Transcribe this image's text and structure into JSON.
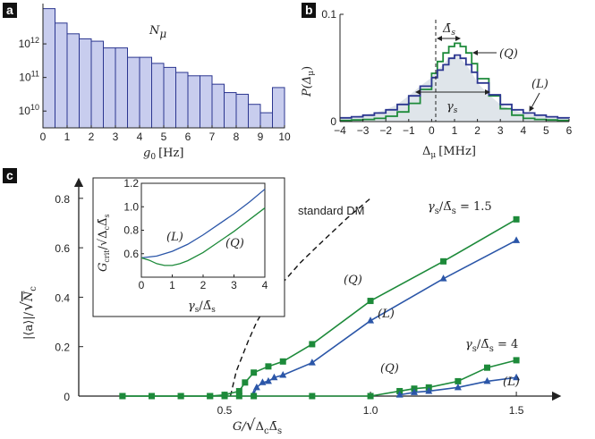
{
  "panel_letters": {
    "a": "a",
    "b": "b",
    "c": "c"
  },
  "chart_data": [
    {
      "id": "a",
      "type": "bar",
      "title": "N_μ",
      "title_main": "N",
      "title_sub": "μ",
      "xlabel_var": "g",
      "xlabel_sub": "0",
      "xlabel_unit": "[Hz]",
      "log_y": true,
      "xlim": [
        0,
        10
      ],
      "ylim_exp": [
        9.5,
        13.2
      ],
      "x_ticks": [
        "0",
        "1",
        "2",
        "3",
        "4",
        "5",
        "6",
        "7",
        "8",
        "9",
        "10"
      ],
      "y_ticks": [
        {
          "base": "10",
          "exp": "12"
        },
        {
          "base": "10",
          "exp": "11"
        },
        {
          "base": "10",
          "exp": "10"
        }
      ],
      "bar_width": 0.5,
      "bar_centers": [
        0.25,
        0.75,
        1.25,
        1.75,
        2.25,
        2.75,
        3.25,
        3.75,
        4.25,
        4.75,
        5.25,
        5.75,
        6.25,
        6.75,
        7.25,
        7.75,
        8.25,
        8.75,
        9.25,
        9.75
      ],
      "values_exp": [
        13.05,
        12.62,
        12.3,
        12.15,
        12.08,
        11.88,
        11.88,
        11.6,
        11.6,
        11.42,
        11.3,
        11.15,
        11.05,
        11.05,
        10.8,
        10.55,
        10.5,
        10.2,
        9.95,
        10.7
      ],
      "colors": {
        "fill": "#c8cdee",
        "stroke": "#2b3690"
      }
    },
    {
      "id": "b",
      "type": "area",
      "ylabel": "P(Δ_μ)",
      "ylabel_main": "P(Δ",
      "ylabel_sub": "μ",
      "ylabel_end": ")",
      "xlabel_main": "Δ",
      "xlabel_sub": "μ",
      "xlabel_unit": "[MHz]",
      "xlim": [
        -4,
        6
      ],
      "ylim": [
        0,
        0.1
      ],
      "x_ticks": [
        "−4",
        "−3",
        "−2",
        "−1",
        "0",
        "1",
        "2",
        "3",
        "4",
        "5",
        "6"
      ],
      "y_ticks": [
        "0",
        "0.1"
      ],
      "annotations": {
        "delta_bar": "Δ̄",
        "delta_sub": "s",
        "gamma": "γ",
        "gamma_sub": "s",
        "Q": "(Q)",
        "L": "(L)"
      },
      "series": [
        {
          "name": "(L)",
          "color": "#2b3690",
          "x": [
            -4,
            -3.5,
            -3,
            -2.5,
            -2,
            -1.5,
            -1,
            -0.5,
            0,
            0.25,
            0.5,
            0.75,
            1,
            1.25,
            1.5,
            1.75,
            2,
            2.5,
            3,
            3.5,
            4,
            4.5,
            5,
            5.5,
            6
          ],
          "y": [
            0.0035,
            0.0045,
            0.006,
            0.008,
            0.011,
            0.016,
            0.024,
            0.033,
            0.041,
            0.048,
            0.053,
            0.059,
            0.062,
            0.059,
            0.053,
            0.046,
            0.036,
            0.025,
            0.016,
            0.011,
            0.008,
            0.006,
            0.0045,
            0.0035,
            0.003
          ]
        },
        {
          "name": "(Q)",
          "color": "#1d8a3a",
          "x": [
            -4,
            -3.5,
            -3,
            -2.5,
            -2,
            -1.5,
            -1,
            -0.5,
            0,
            0.25,
            0.5,
            0.75,
            1,
            1.25,
            1.5,
            1.75,
            2,
            2.5,
            3,
            3.5,
            4,
            4.5,
            5,
            5.5,
            6
          ],
          "y": [
            0.001,
            0.0015,
            0.002,
            0.003,
            0.005,
            0.009,
            0.017,
            0.03,
            0.045,
            0.056,
            0.064,
            0.07,
            0.073,
            0.07,
            0.064,
            0.054,
            0.04,
            0.024,
            0.012,
            0.006,
            0.003,
            0.002,
            0.0015,
            0.001,
            0.001
          ]
        }
      ]
    },
    {
      "id": "c",
      "type": "line",
      "xlabel": "G/√(Δ_c Δ̄_s)",
      "xlabel_pre": "G/",
      "xlabel_rad": "Δ",
      "xlabel_rad_sub": "c",
      "xlabel_rad2": "Δ̄",
      "xlabel_rad2_sub": "s",
      "ylabel_pre": "|⟨a⟩|/",
      "ylabel_rad": "N",
      "ylabel_rad_sub": "c",
      "xlim": [
        0,
        1.65
      ],
      "ylim": [
        0,
        0.85
      ],
      "x_ticks": [
        {
          "v": 0.5,
          "t": "0.5"
        },
        {
          "v": 1.0,
          "t": "1.0"
        },
        {
          "v": 1.5,
          "t": "1.5"
        }
      ],
      "y_ticks": [
        {
          "v": 0,
          "t": "0"
        },
        {
          "v": 0.2,
          "t": "0.2"
        },
        {
          "v": 0.4,
          "t": "0.4"
        },
        {
          "v": 0.6,
          "t": "0.6"
        },
        {
          "v": 0.8,
          "t": "0.8"
        }
      ],
      "annotations": {
        "standard_dm": "standard DM",
        "ratio_top_pre": "γ",
        "ratio_top_sub": "s",
        "ratio_top_mid": "/Δ̄",
        "ratio_top_sub2": "s",
        "ratio_top_val": " = 1.5",
        "ratio_bot_val": " = 4",
        "Q": "(Q)",
        "L": "(L)"
      },
      "dm_curve": {
        "x": [
          0.52,
          0.53,
          0.54,
          0.56,
          0.58,
          0.61,
          0.65,
          0.7,
          0.76,
          0.83,
          0.92,
          1.0
        ],
        "y": [
          0,
          0.05,
          0.1,
          0.16,
          0.22,
          0.3,
          0.38,
          0.46,
          0.54,
          0.62,
          0.72,
          0.8
        ]
      },
      "series": [
        {
          "name": "(Q) γs/Δ̄s = 1.5",
          "color": "#1d8a3a",
          "marker": "square",
          "x": [
            0.15,
            0.25,
            0.35,
            0.45,
            0.5,
            0.55,
            0.57,
            0.6,
            0.65,
            0.7,
            0.8,
            1.0,
            1.25,
            1.5
          ],
          "y": [
            0,
            0,
            0,
            0,
            0.005,
            0.02,
            0.055,
            0.095,
            0.12,
            0.14,
            0.21,
            0.385,
            0.545,
            0.715
          ]
        },
        {
          "name": "(L) γs/Δ̄s = 1.5",
          "color": "#2b56a8",
          "marker": "triangle",
          "x": [
            0.6,
            0.61,
            0.63,
            0.65,
            0.67,
            0.7,
            0.8,
            1.0,
            1.25,
            1.5
          ],
          "y": [
            0.01,
            0.035,
            0.055,
            0.06,
            0.075,
            0.085,
            0.135,
            0.305,
            0.475,
            0.63
          ]
        },
        {
          "name": "(Q) γs/Δ̄s = 4",
          "color": "#1d8a3a",
          "marker": "square",
          "x": [
            0.15,
            0.25,
            0.35,
            0.45,
            0.5,
            0.55,
            0.6,
            0.8,
            1.0,
            1.1,
            1.15,
            1.2,
            1.3,
            1.4,
            1.5
          ],
          "y": [
            0,
            0,
            0,
            0,
            0,
            0,
            0,
            0,
            0,
            0.02,
            0.03,
            0.035,
            0.06,
            0.115,
            0.145
          ]
        },
        {
          "name": "(L) γs/Δ̄s = 4",
          "color": "#2b56a8",
          "marker": "triangle",
          "x": [
            1.1,
            1.15,
            1.2,
            1.3,
            1.4,
            1.5
          ],
          "y": [
            0.005,
            0.015,
            0.02,
            0.035,
            0.06,
            0.075
          ]
        }
      ]
    },
    {
      "id": "c-inset",
      "type": "line",
      "ylabel_pre": "G",
      "ylabel_sub": "crit",
      "ylabel_mid": "/",
      "ylabel_rad": "Δ",
      "ylabel_rad_sub": "c",
      "ylabel_rad2": "Δ̄",
      "ylabel_rad2_sub": "s",
      "xlabel_pre": "γ",
      "xlabel_sub": "s",
      "xlabel_mid": "/Δ̄",
      "xlabel_sub2": "s",
      "xlim": [
        0,
        4
      ],
      "ylim": [
        0.4,
        1.2
      ],
      "x_ticks": [
        "0",
        "1",
        "2",
        "3",
        "4"
      ],
      "y_ticks": [
        {
          "v": 0.6,
          "t": "0.6"
        },
        {
          "v": 0.8,
          "t": "0.8"
        },
        {
          "v": 1.0,
          "t": "1.0"
        },
        {
          "v": 1.2,
          "t": "1.2"
        }
      ],
      "labels": {
        "L": "(L)",
        "Q": "(Q)"
      },
      "series": [
        {
          "name": "(L)",
          "color": "#2b56a8",
          "x": [
            0,
            0.5,
            1,
            1.5,
            2,
            2.5,
            3,
            3.5,
            4
          ],
          "y": [
            0.565,
            0.58,
            0.62,
            0.68,
            0.76,
            0.85,
            0.94,
            1.04,
            1.15
          ]
        },
        {
          "name": "(Q)",
          "color": "#1d8a3a",
          "x": [
            0,
            0.25,
            0.5,
            0.75,
            1,
            1.25,
            1.5,
            2,
            2.5,
            3,
            3.5,
            4
          ],
          "y": [
            0.565,
            0.545,
            0.515,
            0.5,
            0.5,
            0.515,
            0.54,
            0.61,
            0.7,
            0.79,
            0.89,
            0.99
          ]
        }
      ]
    }
  ]
}
